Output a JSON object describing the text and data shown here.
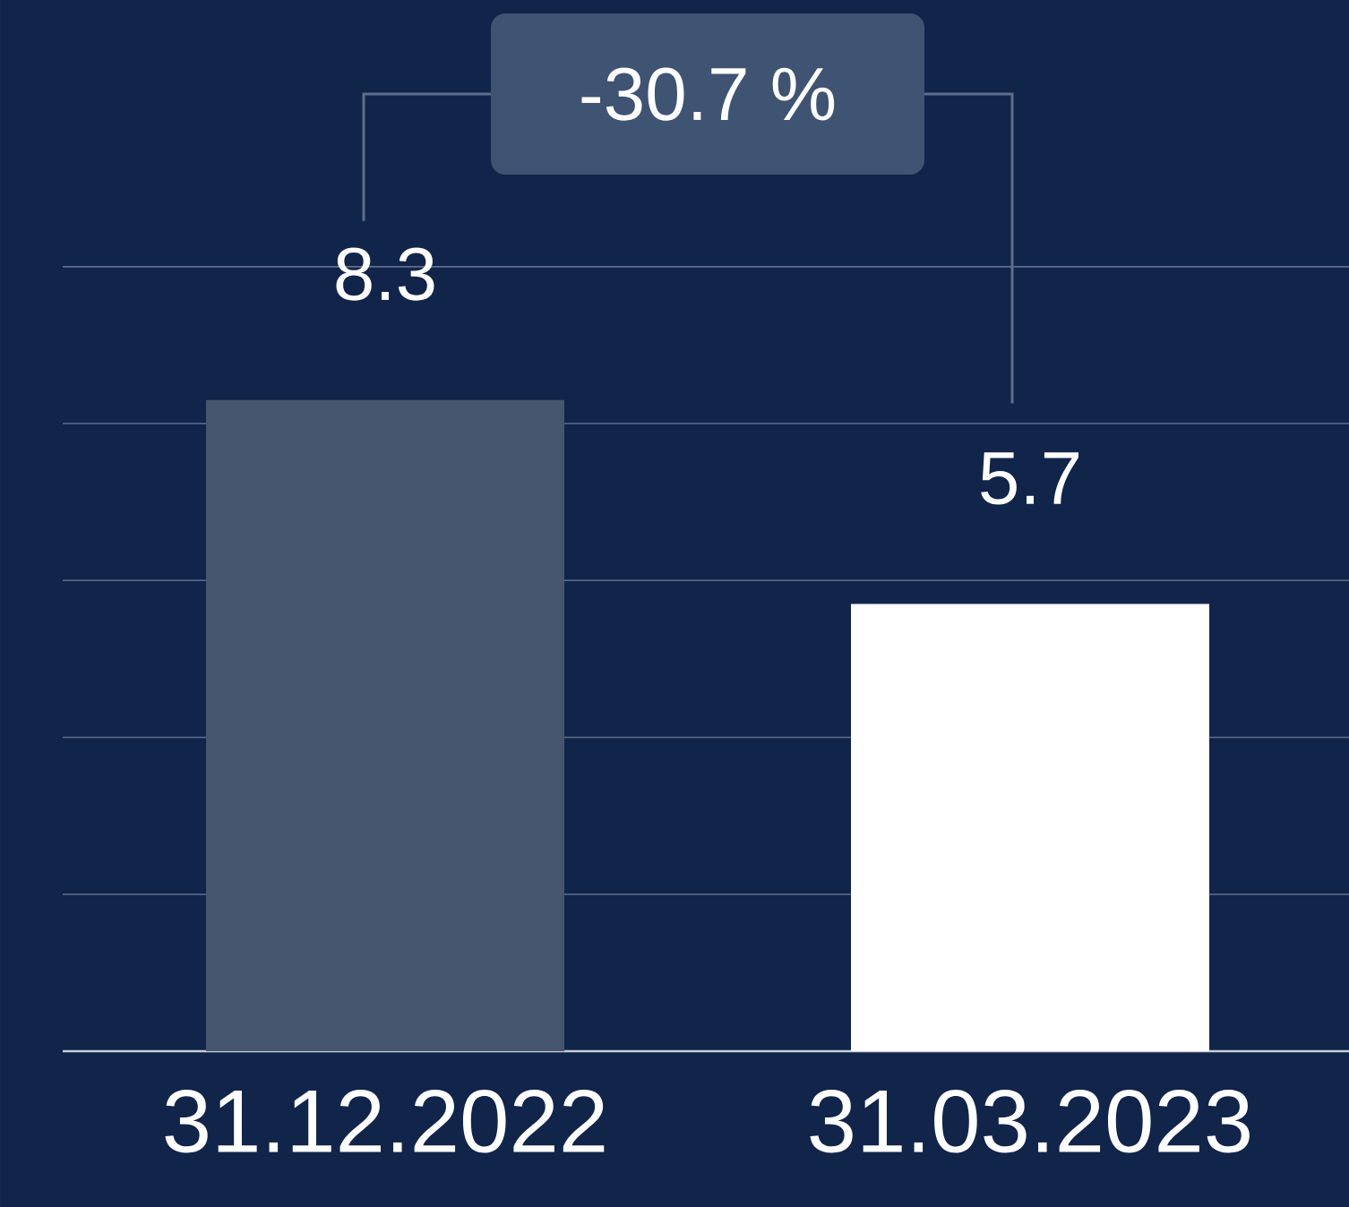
{
  "chart_data": {
    "type": "bar",
    "categories": [
      "31.12.2022",
      "31.03.2023"
    ],
    "values": [
      8.3,
      5.7
    ],
    "value_labels": [
      "8.3",
      "5.7"
    ],
    "colors": [
      "#46566f",
      "#ffffff"
    ],
    "annotations": [
      "-30.7 %"
    ],
    "ylim": [
      0,
      13.4
    ],
    "yticks": [
      {
        "value": 2,
        "label": null
      },
      {
        "value": 4,
        "label": null
      },
      {
        "value": 6,
        "label": null
      },
      {
        "value": 8,
        "label": null
      },
      {
        "value": 10,
        "label": null
      }
    ],
    "grid": "y",
    "tick_labels": "x"
  }
}
